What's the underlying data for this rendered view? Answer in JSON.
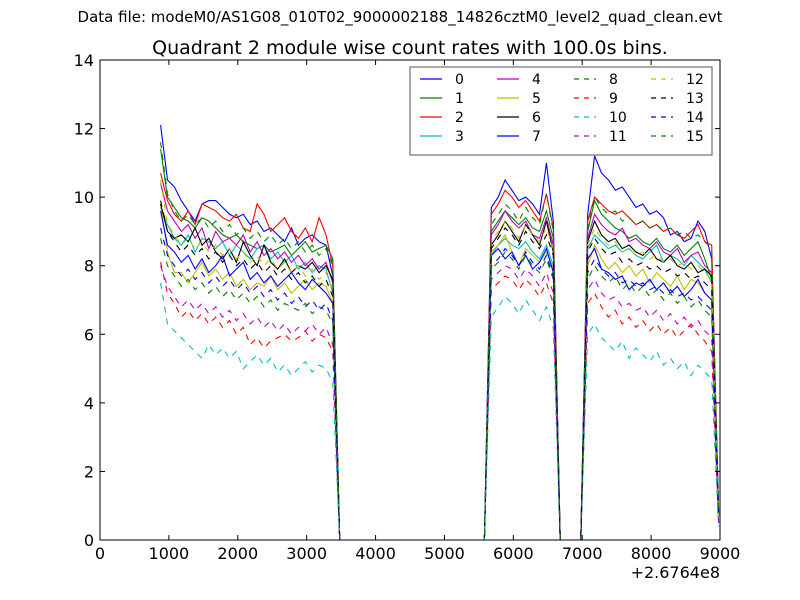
{
  "suptitle": "Data file: modeM0/AS1G08_010T02_9000002188_14826cztM0_level2_quad_clean.evt",
  "chart_data": {
    "type": "line",
    "title": "Quadrant 2 module wise count rates with 100.0s bins.",
    "xlabel": "",
    "ylabel": "",
    "x_offset_label": "+2.6764e8",
    "xlim": [
      0,
      9000
    ],
    "ylim": [
      0,
      14
    ],
    "xticks": [
      0,
      1000,
      2000,
      3000,
      4000,
      5000,
      6000,
      7000,
      8000,
      9000
    ],
    "yticks": [
      0,
      2,
      4,
      6,
      8,
      10,
      12,
      14
    ],
    "grid": false,
    "legend_position": "top-right",
    "legend_columns": 4,
    "x": [
      880,
      980,
      1080,
      1180,
      1280,
      1380,
      1480,
      1580,
      1680,
      1780,
      1880,
      1980,
      2080,
      2180,
      2280,
      2380,
      2480,
      2580,
      2680,
      2780,
      2880,
      2980,
      3080,
      3180,
      3280,
      3380,
      3480,
      3580,
      5580,
      5680,
      5780,
      5880,
      5980,
      6080,
      6180,
      6280,
      6380,
      6480,
      6580,
      6680,
      6700,
      6980,
      7080,
      7180,
      7280,
      7380,
      7480,
      7580,
      7680,
      7780,
      7880,
      7980,
      8080,
      8180,
      8280,
      8380,
      8480,
      8580,
      8680,
      8780,
      8880,
      8980
    ],
    "series": [
      {
        "name": "0",
        "color": "#0000ff",
        "dashed": false,
        "values": [
          12.1,
          10.5,
          10.3,
          9.9,
          9.6,
          9.3,
          9.8,
          9.9,
          9.9,
          9.7,
          9.5,
          9.4,
          9.5,
          9.2,
          9.3,
          9.0,
          9.1,
          8.9,
          8.7,
          9.1,
          8.6,
          8.8,
          8.9,
          8.7,
          8.6,
          7.7,
          0,
          0,
          0,
          9.7,
          10.0,
          10.5,
          10.2,
          9.9,
          10.0,
          9.8,
          9.5,
          11.0,
          9.3,
          0,
          0,
          0,
          9.5,
          11.2,
          10.7,
          10.5,
          10.2,
          10.3,
          10.0,
          9.7,
          9.8,
          9.5,
          9.6,
          9.4,
          8.9,
          9.0,
          8.7,
          8.8,
          9.3,
          9.0,
          8.2,
          0.9
        ]
      },
      {
        "name": "1",
        "color": "#008000",
        "dashed": false,
        "values": [
          11.4,
          10.0,
          9.7,
          9.4,
          9.3,
          9.1,
          9.4,
          9.3,
          9.1,
          8.9,
          8.8,
          8.9,
          8.7,
          8.6,
          8.5,
          8.6,
          8.4,
          8.5,
          8.6,
          8.3,
          8.5,
          8.7,
          8.4,
          8.5,
          8.6,
          8.2,
          0,
          0,
          0,
          9.0,
          9.3,
          9.6,
          9.4,
          9.2,
          9.4,
          9.1,
          9.0,
          9.6,
          8.8,
          0,
          0,
          0,
          9.0,
          9.9,
          9.5,
          9.3,
          9.1,
          9.0,
          8.8,
          8.9,
          8.7,
          8.6,
          8.8,
          8.5,
          8.4,
          8.6,
          8.3,
          8.5,
          8.7,
          8.2,
          7.6,
          0.8
        ]
      },
      {
        "name": "2",
        "color": "#ff0000",
        "dashed": false,
        "values": [
          10.7,
          9.9,
          9.5,
          9.3,
          9.6,
          9.2,
          9.8,
          9.7,
          9.6,
          9.4,
          9.3,
          9.5,
          9.1,
          9.0,
          9.8,
          9.5,
          9.0,
          9.2,
          9.4,
          9.0,
          8.8,
          9.1,
          8.7,
          9.4,
          8.9,
          8.0,
          0,
          0,
          0,
          9.5,
          9.8,
          10.2,
          10.0,
          9.7,
          9.9,
          9.6,
          9.3,
          10.1,
          9.1,
          0,
          0,
          0,
          9.3,
          10.0,
          9.8,
          9.6,
          9.5,
          9.6,
          9.4,
          9.2,
          9.3,
          9.1,
          9.2,
          9.0,
          9.1,
          8.9,
          8.8,
          9.0,
          9.2,
          8.7,
          8.6,
          0.8
        ]
      },
      {
        "name": "3",
        "color": "#00bfbf",
        "dashed": false,
        "values": [
          9.7,
          9.2,
          8.8,
          8.6,
          8.9,
          8.4,
          8.8,
          8.7,
          8.5,
          8.7,
          8.3,
          8.6,
          8.4,
          8.2,
          8.5,
          8.6,
          8.2,
          8.4,
          8.1,
          8.3,
          7.9,
          8.1,
          7.8,
          8.0,
          7.9,
          7.2,
          0,
          0,
          0,
          8.3,
          8.6,
          8.8,
          8.6,
          8.5,
          8.7,
          8.4,
          8.2,
          8.6,
          8.0,
          0,
          0,
          0,
          8.5,
          8.9,
          8.7,
          8.5,
          8.6,
          8.4,
          8.5,
          8.3,
          8.2,
          8.4,
          8.6,
          8.1,
          8.3,
          8.2,
          8.0,
          8.3,
          8.1,
          7.9,
          7.5,
          0.7
        ]
      },
      {
        "name": "4",
        "color": "#bf00bf",
        "dashed": false,
        "values": [
          10.4,
          9.6,
          9.3,
          9.0,
          9.2,
          8.8,
          9.1,
          8.5,
          9.0,
          8.7,
          8.8,
          8.6,
          8.9,
          8.4,
          8.7,
          8.3,
          8.5,
          8.2,
          8.4,
          8.1,
          8.3,
          8.0,
          8.2,
          7.9,
          8.1,
          7.5,
          0,
          0,
          0,
          8.9,
          9.2,
          9.6,
          9.3,
          9.1,
          9.3,
          8.9,
          8.8,
          9.4,
          8.6,
          0,
          0,
          0,
          8.8,
          9.5,
          9.2,
          9.0,
          8.9,
          9.1,
          8.7,
          8.8,
          8.6,
          8.5,
          8.7,
          8.4,
          8.3,
          8.5,
          8.1,
          8.3,
          8.4,
          8.0,
          7.8,
          0.8
        ]
      },
      {
        "name": "5",
        "color": "#bfbf00",
        "dashed": false,
        "values": [
          9.8,
          8.4,
          7.8,
          7.8,
          7.5,
          7.8,
          8.1,
          7.7,
          7.9,
          7.6,
          7.8,
          7.4,
          7.6,
          7.3,
          7.5,
          7.4,
          7.7,
          7.3,
          7.5,
          7.2,
          7.4,
          7.6,
          7.3,
          7.5,
          7.4,
          6.9,
          0,
          0,
          0,
          8.4,
          8.6,
          8.9,
          8.4,
          8.0,
          8.5,
          8.3,
          8.1,
          8.4,
          7.9,
          0,
          0,
          0,
          8.0,
          8.6,
          8.2,
          7.9,
          8.1,
          7.8,
          8.0,
          7.7,
          7.9,
          7.5,
          7.8,
          7.6,
          7.4,
          7.7,
          7.3,
          7.6,
          7.5,
          7.2,
          7.0,
          0.7
        ]
      },
      {
        "name": "6",
        "color": "#000000",
        "dashed": false,
        "values": [
          9.8,
          9.0,
          8.8,
          8.9,
          8.7,
          9.1,
          8.6,
          8.8,
          8.4,
          8.2,
          8.5,
          8.1,
          8.7,
          8.3,
          8.0,
          8.6,
          8.1,
          7.9,
          8.2,
          7.8,
          8.0,
          7.9,
          8.1,
          7.8,
          8.0,
          7.6,
          0,
          0,
          0,
          8.6,
          8.9,
          9.3,
          9.0,
          8.7,
          9.2,
          8.9,
          8.6,
          9.3,
          8.4,
          0,
          0,
          0,
          8.7,
          9.3,
          8.9,
          8.7,
          8.8,
          8.5,
          8.6,
          8.4,
          8.3,
          8.5,
          8.2,
          8.1,
          8.3,
          8.0,
          7.9,
          8.1,
          7.8,
          7.9,
          7.7,
          0.7
        ]
      },
      {
        "name": "7",
        "color": "#0000ff",
        "dashed": false,
        "values": [
          9.6,
          8.6,
          8.4,
          8.1,
          8.3,
          7.9,
          8.2,
          7.8,
          8.0,
          8.3,
          7.7,
          7.9,
          8.1,
          7.6,
          7.8,
          7.5,
          7.7,
          7.4,
          7.6,
          7.8,
          7.5,
          7.3,
          7.6,
          7.4,
          7.2,
          6.9,
          0,
          0,
          0,
          8.3,
          8.5,
          8.2,
          8.4,
          8.0,
          8.3,
          7.9,
          8.1,
          8.5,
          7.8,
          0,
          0,
          0,
          8.2,
          8.5,
          7.9,
          7.8,
          7.6,
          7.7,
          7.3,
          7.5,
          7.4,
          7.6,
          7.3,
          7.5,
          7.2,
          7.4,
          7.1,
          7.3,
          7.6,
          7.2,
          7.0,
          0.7
        ]
      },
      {
        "name": "8",
        "color": "#008000",
        "dashed": true,
        "values": [
          8.8,
          8.0,
          7.7,
          7.4,
          7.6,
          7.3,
          7.5,
          7.2,
          7.4,
          7.1,
          7.3,
          7.0,
          7.2,
          6.9,
          7.1,
          6.8,
          7.0,
          6.7,
          6.9,
          6.8,
          6.7,
          6.9,
          6.6,
          6.8,
          6.7,
          6.3,
          0,
          0,
          0,
          7.9,
          8.1,
          8.4,
          8.2,
          7.9,
          8.3,
          8.0,
          7.8,
          8.2,
          7.6,
          0,
          0,
          0,
          7.6,
          8.0,
          7.7,
          7.5,
          7.7,
          7.3,
          7.5,
          7.2,
          7.4,
          7.1,
          7.3,
          7.0,
          7.2,
          6.9,
          7.1,
          6.8,
          7.0,
          6.7,
          6.5,
          0.6
        ]
      },
      {
        "name": "9",
        "color": "#ff0000",
        "dashed": true,
        "values": [
          8.1,
          7.2,
          6.9,
          6.5,
          6.7,
          6.4,
          6.6,
          6.3,
          6.5,
          6.2,
          6.4,
          6.0,
          6.2,
          5.7,
          5.9,
          5.6,
          5.8,
          5.9,
          6.0,
          5.8,
          5.9,
          6.1,
          5.8,
          6.0,
          5.9,
          5.5,
          0,
          0,
          0,
          7.3,
          7.5,
          7.7,
          7.6,
          7.3,
          7.6,
          7.4,
          7.1,
          7.5,
          6.9,
          0,
          0,
          0,
          6.9,
          7.2,
          6.8,
          6.5,
          6.7,
          6.3,
          6.5,
          6.2,
          6.4,
          6.1,
          6.3,
          6.0,
          6.2,
          5.9,
          6.1,
          6.3,
          6.0,
          5.8,
          5.5,
          0.5
        ]
      },
      {
        "name": "10",
        "color": "#00bfbf",
        "dashed": true,
        "values": [
          7.5,
          6.3,
          6.1,
          5.9,
          5.7,
          5.5,
          5.3,
          5.7,
          5.4,
          5.6,
          5.3,
          5.5,
          5.0,
          5.2,
          5.4,
          5.1,
          5.3,
          4.9,
          5.1,
          4.8,
          5.0,
          5.2,
          4.9,
          5.1,
          5.0,
          4.6,
          0,
          0,
          0,
          6.5,
          6.8,
          7.1,
          6.9,
          6.6,
          7.0,
          6.7,
          6.4,
          6.8,
          6.2,
          0,
          0,
          0,
          6.0,
          6.3,
          5.9,
          5.7,
          5.5,
          5.8,
          5.3,
          5.6,
          5.4,
          5.2,
          5.5,
          5.1,
          5.3,
          5.0,
          5.2,
          4.8,
          5.1,
          4.9,
          4.7,
          0.4
        ]
      },
      {
        "name": "11",
        "color": "#bf00bf",
        "dashed": true,
        "values": [
          8.0,
          7.4,
          7.1,
          6.8,
          7.0,
          6.7,
          6.9,
          6.6,
          6.8,
          6.5,
          6.7,
          6.4,
          6.6,
          6.3,
          6.5,
          6.2,
          6.4,
          6.1,
          6.3,
          6.0,
          6.2,
          6.1,
          6.3,
          6.0,
          6.2,
          5.7,
          0,
          0,
          0,
          7.6,
          7.8,
          8.0,
          7.9,
          7.6,
          7.9,
          7.7,
          7.4,
          7.8,
          7.2,
          0,
          0,
          0,
          7.3,
          7.6,
          7.2,
          7.0,
          7.1,
          6.8,
          6.9,
          6.7,
          6.8,
          6.5,
          6.7,
          6.4,
          6.6,
          6.3,
          6.5,
          6.2,
          6.4,
          6.1,
          5.9,
          0.5
        ]
      },
      {
        "name": "12",
        "color": "#bfbf00",
        "dashed": true,
        "values": [
          10.5,
          9.2,
          8.9,
          8.6,
          8.8,
          8.5,
          8.7,
          8.4,
          8.6,
          8.3,
          8.5,
          8.2,
          8.4,
          8.1,
          8.3,
          8.0,
          8.2,
          7.9,
          8.1,
          7.8,
          8.0,
          7.7,
          7.9,
          7.6,
          7.8,
          7.3,
          0,
          0,
          0,
          8.7,
          9.0,
          9.3,
          9.1,
          8.8,
          9.2,
          8.9,
          8.7,
          9.1,
          8.5,
          0,
          0,
          0,
          8.6,
          9.1,
          8.8,
          8.6,
          8.7,
          8.4,
          8.5,
          8.3,
          8.4,
          8.2,
          8.3,
          8.1,
          8.2,
          8.0,
          8.1,
          7.9,
          8.0,
          7.8,
          7.6,
          0.7
        ]
      },
      {
        "name": "13",
        "color": "#000000",
        "dashed": true,
        "values": [
          9.9,
          9.0,
          8.7,
          8.4,
          8.6,
          8.3,
          8.5,
          8.2,
          8.4,
          8.1,
          8.3,
          8.0,
          8.2,
          7.9,
          8.1,
          7.8,
          8.0,
          7.7,
          7.9,
          7.6,
          7.8,
          7.5,
          7.7,
          7.4,
          7.6,
          7.1,
          0,
          0,
          0,
          8.5,
          8.8,
          9.1,
          8.9,
          8.6,
          9.0,
          8.7,
          8.5,
          8.9,
          8.3,
          0,
          0,
          0,
          8.4,
          8.8,
          8.5,
          8.3,
          8.4,
          8.1,
          8.2,
          8.0,
          8.1,
          7.9,
          8.0,
          7.8,
          7.9,
          7.7,
          7.8,
          7.6,
          7.7,
          7.5,
          7.3,
          0.7
        ]
      },
      {
        "name": "14",
        "color": "#0000ff",
        "dashed": true,
        "values": [
          9.1,
          8.3,
          8.0,
          7.7,
          7.9,
          7.6,
          7.8,
          7.5,
          7.7,
          7.4,
          7.6,
          7.3,
          7.5,
          7.2,
          7.4,
          7.1,
          7.3,
          7.0,
          7.2,
          6.9,
          7.1,
          6.8,
          7.0,
          6.7,
          6.9,
          6.4,
          0,
          0,
          0,
          8.0,
          8.2,
          8.5,
          8.3,
          8.0,
          8.4,
          8.1,
          7.9,
          8.3,
          7.7,
          0,
          0,
          0,
          7.8,
          8.2,
          7.9,
          7.7,
          7.8,
          7.5,
          7.6,
          7.4,
          7.5,
          7.3,
          7.4,
          7.2,
          7.3,
          7.1,
          7.2,
          7.0,
          7.1,
          6.9,
          6.7,
          0.6
        ]
      },
      {
        "name": "15",
        "color": "#008000",
        "dashed": true,
        "values": [
          11.6,
          10.1,
          9.6,
          9.3,
          9.5,
          9.2,
          9.4,
          9.1,
          9.3,
          9.0,
          9.2,
          8.9,
          9.1,
          8.8,
          9.0,
          8.7,
          8.9,
          8.6,
          8.8,
          8.5,
          8.7,
          8.4,
          8.6,
          8.3,
          8.5,
          8.0,
          0,
          0,
          0,
          9.2,
          9.5,
          9.8,
          9.6,
          9.3,
          9.7,
          9.4,
          9.2,
          10.1,
          9.0,
          0,
          0,
          0,
          9.1,
          10.0,
          9.7,
          9.5,
          9.6,
          9.3,
          9.4,
          9.2,
          9.3,
          9.1,
          9.2,
          9.0,
          9.1,
          8.9,
          9.0,
          8.8,
          8.9,
          8.7,
          8.5,
          0.8
        ]
      }
    ]
  }
}
